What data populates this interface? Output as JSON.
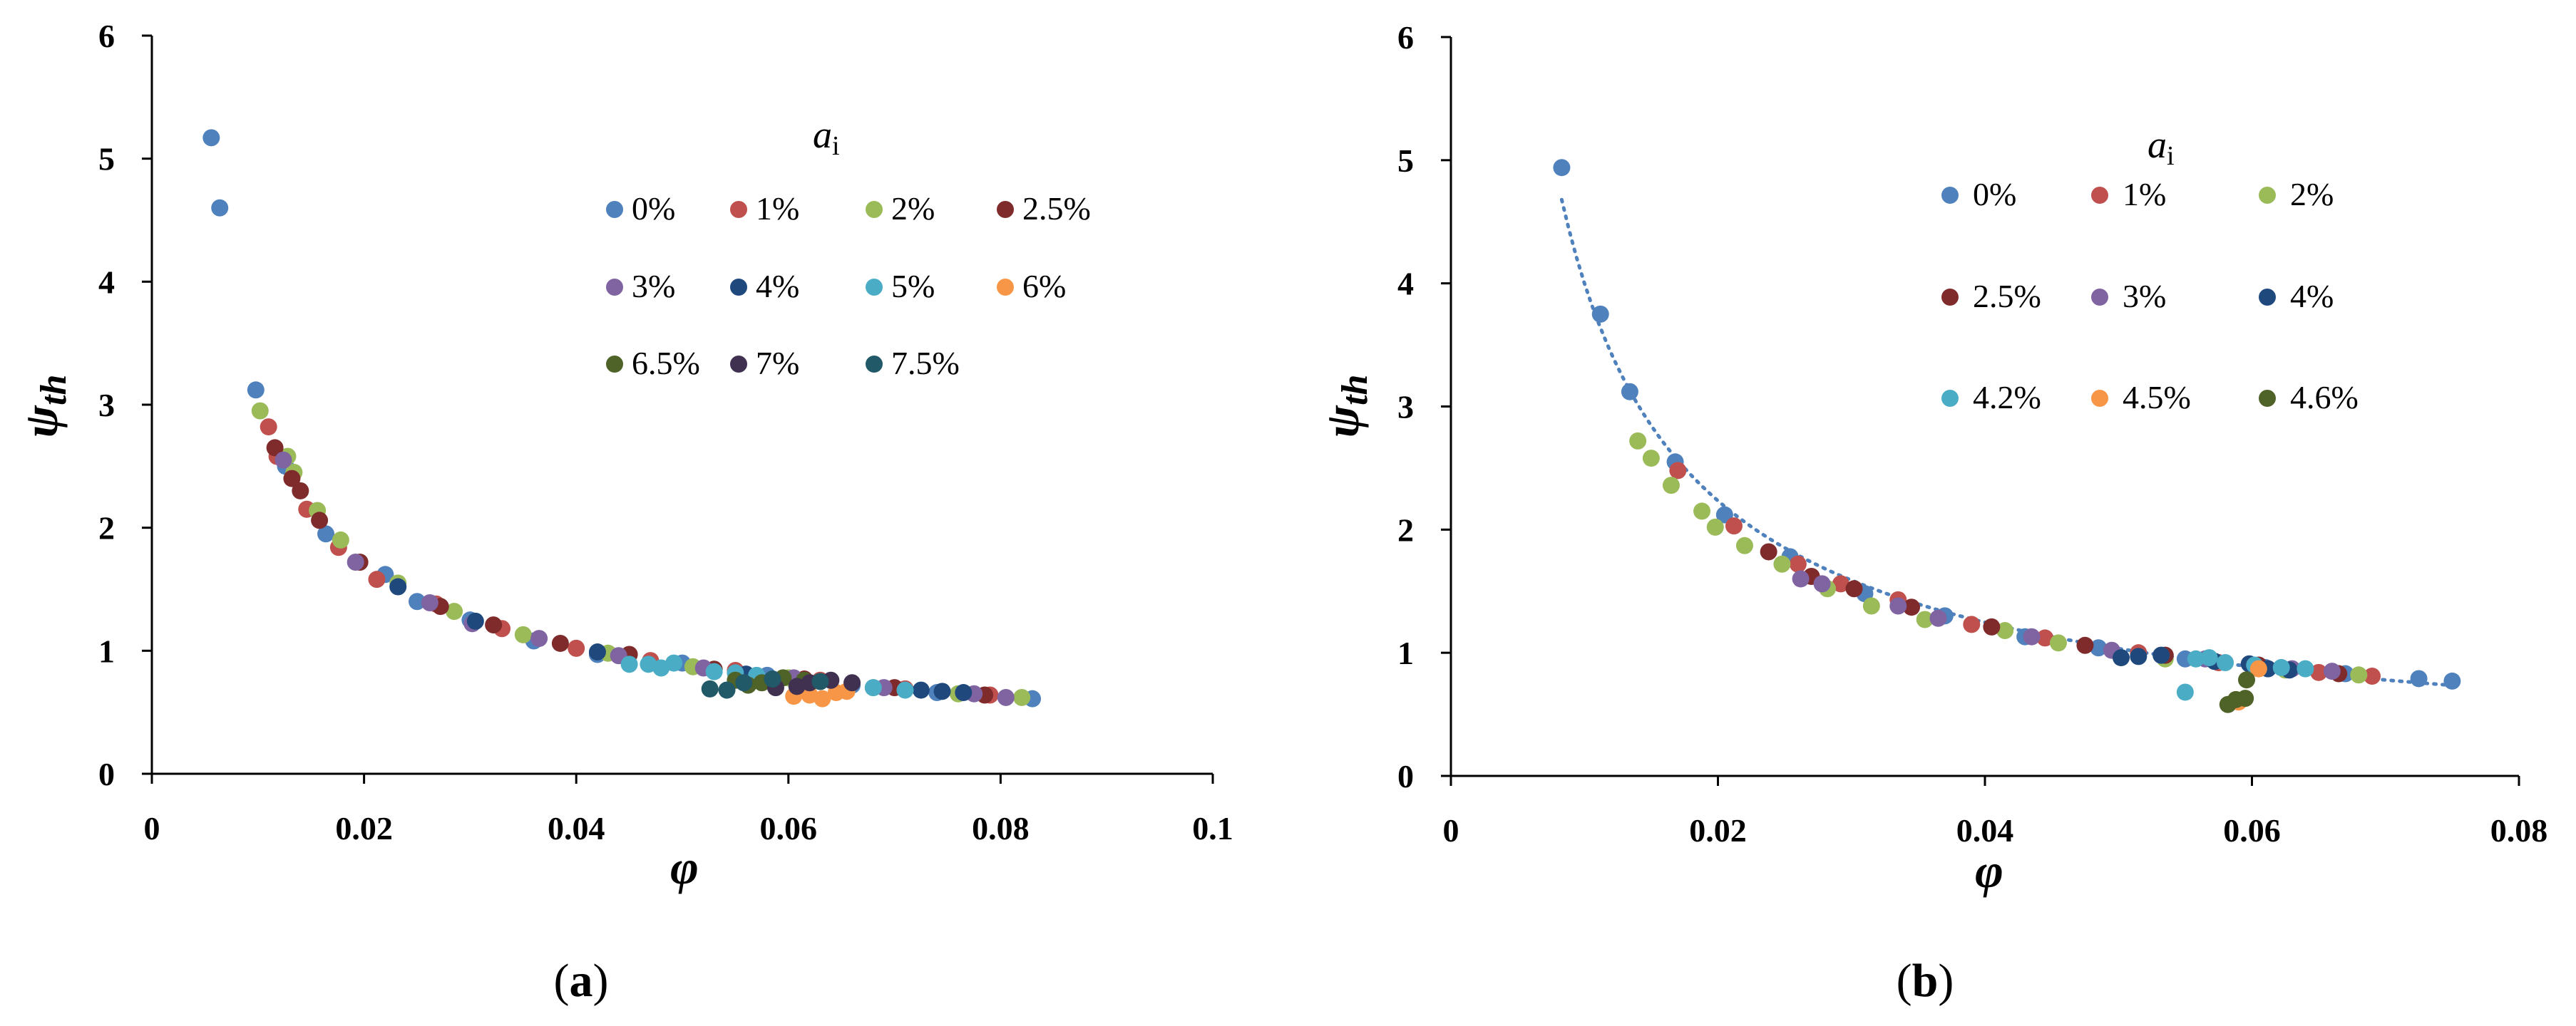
{
  "chart_data": [
    {
      "type": "scatter",
      "panel_label_parts": [
        "(",
        "a",
        ")"
      ],
      "xlabel": "φ",
      "ylabel_base": "ψ",
      "ylabel_sub": "th",
      "xlim": [
        0,
        0.1
      ],
      "ylim": [
        0,
        6
      ],
      "xticks": [
        "0",
        "0.02",
        "0.04",
        "0.06",
        "0.08",
        "0.1"
      ],
      "yticks": [
        "0",
        "1",
        "2",
        "3",
        "4",
        "5",
        "6"
      ],
      "legend_title": "a",
      "legend_title_sub": "i",
      "legend_position": "top-right",
      "series": [
        {
          "name": "0%",
          "color": "#4F81BD",
          "points": [
            [
              0.0056,
              5.17
            ],
            [
              0.0064,
              4.6
            ],
            [
              0.0098,
              3.12
            ],
            [
              0.0126,
              2.5
            ],
            [
              0.0164,
              1.95
            ],
            [
              0.022,
              1.62
            ],
            [
              0.025,
              1.4
            ],
            [
              0.03,
              1.25
            ],
            [
              0.036,
              1.08
            ],
            [
              0.042,
              0.97
            ],
            [
              0.05,
              0.9
            ],
            [
              0.058,
              0.8
            ],
            [
              0.066,
              0.72
            ],
            [
              0.074,
              0.66
            ],
            [
              0.083,
              0.61
            ]
          ]
        },
        {
          "name": "1%",
          "color": "#C0504D",
          "points": [
            [
              0.011,
              2.82
            ],
            [
              0.0118,
              2.58
            ],
            [
              0.0146,
              2.15
            ],
            [
              0.0176,
              1.84
            ],
            [
              0.0212,
              1.58
            ],
            [
              0.0268,
              1.38
            ],
            [
              0.033,
              1.18
            ],
            [
              0.04,
              1.02
            ],
            [
              0.047,
              0.92
            ],
            [
              0.055,
              0.84
            ],
            [
              0.063,
              0.76
            ],
            [
              0.071,
              0.69
            ],
            [
              0.079,
              0.64
            ]
          ]
        },
        {
          "name": "2%",
          "color": "#9BBB59",
          "points": [
            [
              0.0102,
              2.95
            ],
            [
              0.0128,
              2.58
            ],
            [
              0.0134,
              2.45
            ],
            [
              0.0156,
              2.14
            ],
            [
              0.0178,
              1.9
            ],
            [
              0.0232,
              1.55
            ],
            [
              0.0285,
              1.32
            ],
            [
              0.035,
              1.13
            ],
            [
              0.043,
              0.98
            ],
            [
              0.051,
              0.87
            ],
            [
              0.06,
              0.78
            ],
            [
              0.068,
              0.7
            ],
            [
              0.076,
              0.65
            ],
            [
              0.082,
              0.62
            ]
          ]
        },
        {
          "name": "2.5%",
          "color": "#7F2B2B",
          "points": [
            [
              0.0116,
              2.65
            ],
            [
              0.0132,
              2.4
            ],
            [
              0.014,
              2.3
            ],
            [
              0.0158,
              2.06
            ],
            [
              0.0196,
              1.72
            ],
            [
              0.0272,
              1.36
            ],
            [
              0.0322,
              1.21
            ],
            [
              0.0385,
              1.06
            ],
            [
              0.045,
              0.97
            ],
            [
              0.053,
              0.85
            ],
            [
              0.0615,
              0.77
            ],
            [
              0.07,
              0.7
            ],
            [
              0.0785,
              0.64
            ]
          ]
        },
        {
          "name": "3%",
          "color": "#8064A2",
          "points": [
            [
              0.0124,
              2.55
            ],
            [
              0.0192,
              1.72
            ],
            [
              0.0262,
              1.39
            ],
            [
              0.0302,
              1.22
            ],
            [
              0.0365,
              1.1
            ],
            [
              0.044,
              0.96
            ],
            [
              0.052,
              0.86
            ],
            [
              0.0605,
              0.78
            ],
            [
              0.069,
              0.7
            ],
            [
              0.0775,
              0.65
            ],
            [
              0.0805,
              0.62
            ]
          ]
        },
        {
          "name": "4%",
          "color": "#1F497D",
          "points": [
            [
              0.0232,
              1.52
            ],
            [
              0.0305,
              1.24
            ],
            [
              0.042,
              0.99
            ],
            [
              0.056,
              0.81
            ],
            [
              0.0725,
              0.68
            ],
            [
              0.0745,
              0.67
            ],
            [
              0.0765,
              0.66
            ]
          ]
        },
        {
          "name": "5%",
          "color": "#4BACC6",
          "points": [
            [
              0.045,
              0.89
            ],
            [
              0.0468,
              0.89
            ],
            [
              0.048,
              0.86
            ],
            [
              0.0492,
              0.9
            ],
            [
              0.053,
              0.83
            ],
            [
              0.055,
              0.82
            ],
            [
              0.057,
              0.8
            ],
            [
              0.068,
              0.7
            ],
            [
              0.071,
              0.68
            ]
          ]
        },
        {
          "name": "6%",
          "color": "#F79646",
          "points": [
            [
              0.0605,
              0.63
            ],
            [
              0.062,
              0.64
            ],
            [
              0.0632,
              0.61
            ],
            [
              0.0645,
              0.66
            ],
            [
              0.0655,
              0.67
            ]
          ]
        },
        {
          "name": "6.5%",
          "color": "#4F6228",
          "points": [
            [
              0.055,
              0.76
            ],
            [
              0.0562,
              0.72
            ],
            [
              0.0575,
              0.74
            ],
            [
              0.0595,
              0.78
            ],
            [
              0.0615,
              0.76
            ]
          ]
        },
        {
          "name": "7%",
          "color": "#403151",
          "points": [
            [
              0.0588,
              0.7
            ],
            [
              0.0608,
              0.71
            ],
            [
              0.062,
              0.74
            ],
            [
              0.064,
              0.76
            ],
            [
              0.066,
              0.74
            ]
          ]
        },
        {
          "name": "7.5%",
          "color": "#215968",
          "points": [
            [
              0.0526,
              0.69
            ],
            [
              0.0542,
              0.68
            ],
            [
              0.0558,
              0.74
            ],
            [
              0.0585,
              0.77
            ],
            [
              0.063,
              0.75
            ]
          ]
        }
      ]
    },
    {
      "type": "scatter",
      "panel_label_parts": [
        "(",
        "b",
        ")"
      ],
      "xlabel": "φ",
      "ylabel_base": "ψ",
      "ylabel_sub": "th",
      "xlim": [
        0,
        0.08
      ],
      "ylim": [
        0,
        6
      ],
      "xticks": [
        "0",
        "0.02",
        "0.04",
        "0.06",
        "0.08"
      ],
      "yticks": [
        "0",
        "1",
        "2",
        "3",
        "4",
        "5",
        "6"
      ],
      "legend_title": "a",
      "legend_title_sub": "i",
      "legend_position": "top-right",
      "trendline": {
        "style": "dotted",
        "color": "#4F81BD",
        "fit": "power",
        "x_range": [
          0.0083,
          0.075
        ]
      },
      "series": [
        {
          "name": "0%",
          "color": "#4F81BD",
          "points": [
            [
              0.0083,
              4.94
            ],
            [
              0.0112,
              3.75
            ],
            [
              0.0134,
              3.12
            ],
            [
              0.0168,
              2.55
            ],
            [
              0.0205,
              2.12
            ],
            [
              0.0254,
              1.78
            ],
            [
              0.031,
              1.48
            ],
            [
              0.037,
              1.3
            ],
            [
              0.043,
              1.13
            ],
            [
              0.0485,
              1.04
            ],
            [
              0.055,
              0.95
            ],
            [
              0.061,
              0.88
            ],
            [
              0.067,
              0.83
            ],
            [
              0.0725,
              0.79
            ],
            [
              0.075,
              0.77
            ]
          ]
        },
        {
          "name": "1%",
          "color": "#C0504D",
          "points": [
            [
              0.017,
              2.48
            ],
            [
              0.0212,
              2.03
            ],
            [
              0.026,
              1.72
            ],
            [
              0.0292,
              1.56
            ],
            [
              0.0335,
              1.43
            ],
            [
              0.039,
              1.23
            ],
            [
              0.0445,
              1.12
            ],
            [
              0.0515,
              1.0
            ],
            [
              0.0575,
              0.92
            ],
            [
              0.065,
              0.84
            ],
            [
              0.069,
              0.81
            ]
          ]
        },
        {
          "name": "2%",
          "color": "#9BBB59",
          "points": [
            [
              0.014,
              2.72
            ],
            [
              0.015,
              2.58
            ],
            [
              0.0165,
              2.36
            ],
            [
              0.0188,
              2.15
            ],
            [
              0.0198,
              2.02
            ],
            [
              0.022,
              1.87
            ],
            [
              0.0248,
              1.72
            ],
            [
              0.0282,
              1.52
            ],
            [
              0.0315,
              1.38
            ],
            [
              0.0355,
              1.27
            ],
            [
              0.0415,
              1.18
            ],
            [
              0.0455,
              1.08
            ],
            [
              0.0535,
              0.95
            ],
            [
              0.0625,
              0.86
            ],
            [
              0.068,
              0.82
            ]
          ]
        },
        {
          "name": "2.5%",
          "color": "#7F2B2B",
          "points": [
            [
              0.0238,
              1.82
            ],
            [
              0.027,
              1.62
            ],
            [
              0.0302,
              1.52
            ],
            [
              0.0345,
              1.37
            ],
            [
              0.0405,
              1.21
            ],
            [
              0.0475,
              1.06
            ],
            [
              0.0535,
              0.98
            ],
            [
              0.0605,
              0.9
            ],
            [
              0.0665,
              0.83
            ]
          ]
        },
        {
          "name": "3%",
          "color": "#8064A2",
          "points": [
            [
              0.0262,
              1.6
            ],
            [
              0.0278,
              1.56
            ],
            [
              0.0335,
              1.38
            ],
            [
              0.0365,
              1.28
            ],
            [
              0.0435,
              1.13
            ],
            [
              0.0495,
              1.02
            ],
            [
              0.0565,
              0.95
            ],
            [
              0.063,
              0.87
            ],
            [
              0.066,
              0.85
            ]
          ]
        },
        {
          "name": "4%",
          "color": "#1F497D",
          "points": [
            [
              0.0502,
              0.96
            ],
            [
              0.0515,
              0.97
            ],
            [
              0.0532,
              0.98
            ],
            [
              0.0572,
              0.93
            ],
            [
              0.0598,
              0.91
            ],
            [
              0.0612,
              0.87
            ],
            [
              0.0628,
              0.86
            ]
          ]
        },
        {
          "name": "4.2%",
          "color": "#4BACC6",
          "points": [
            [
              0.055,
              0.68
            ],
            [
              0.0558,
              0.95
            ],
            [
              0.0568,
              0.96
            ],
            [
              0.058,
              0.92
            ],
            [
              0.0602,
              0.9
            ],
            [
              0.0622,
              0.88
            ],
            [
              0.064,
              0.87
            ]
          ]
        },
        {
          "name": "4.5%",
          "color": "#F79646",
          "points": [
            [
              0.059,
              0.6
            ],
            [
              0.0605,
              0.87
            ]
          ]
        },
        {
          "name": "4.6%",
          "color": "#4F6228",
          "points": [
            [
              0.0582,
              0.58
            ],
            [
              0.0588,
              0.62
            ],
            [
              0.0595,
              0.63
            ],
            [
              0.0596,
              0.78
            ]
          ]
        }
      ]
    }
  ]
}
